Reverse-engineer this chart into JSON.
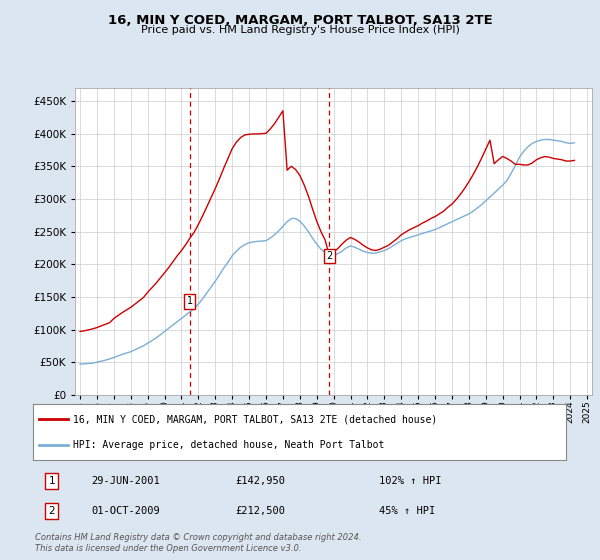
{
  "title": "16, MIN Y COED, MARGAM, PORT TALBOT, SA13 2TE",
  "subtitle": "Price paid vs. HM Land Registry's House Price Index (HPI)",
  "ylabel_ticks": [
    0,
    50000,
    100000,
    150000,
    200000,
    250000,
    300000,
    350000,
    400000,
    450000
  ],
  "ylim": [
    0,
    470000
  ],
  "xlim_start": 1994.7,
  "xlim_end": 2025.3,
  "transaction1": {
    "date_num": 2001.49,
    "price": 142950,
    "label": "1"
  },
  "transaction2": {
    "date_num": 2009.75,
    "price": 212500,
    "label": "2"
  },
  "legend_line1": "16, MIN Y COED, MARGAM, PORT TALBOT, SA13 2TE (detached house)",
  "legend_line2": "HPI: Average price, detached house, Neath Port Talbot",
  "table_row1": [
    "1",
    "29-JUN-2001",
    "£142,950",
    "102% ↑ HPI"
  ],
  "table_row2": [
    "2",
    "01-OCT-2009",
    "£212,500",
    "45% ↑ HPI"
  ],
  "footer": "Contains HM Land Registry data © Crown copyright and database right 2024.\nThis data is licensed under the Open Government Licence v3.0.",
  "red_color": "#cc0000",
  "blue_color": "#7BAFD4",
  "background_color": "#dce6f1",
  "plot_bg_color": "#ffffff",
  "grid_color": "#cccccc",
  "hpi_years": [
    1995.0,
    1995.25,
    1995.5,
    1995.75,
    1996.0,
    1996.25,
    1996.5,
    1996.75,
    1997.0,
    1997.25,
    1997.5,
    1997.75,
    1998.0,
    1998.25,
    1998.5,
    1998.75,
    1999.0,
    1999.25,
    1999.5,
    1999.75,
    2000.0,
    2000.25,
    2000.5,
    2000.75,
    2001.0,
    2001.25,
    2001.5,
    2001.75,
    2002.0,
    2002.25,
    2002.5,
    2002.75,
    2003.0,
    2003.25,
    2003.5,
    2003.75,
    2004.0,
    2004.25,
    2004.5,
    2004.75,
    2005.0,
    2005.25,
    2005.5,
    2005.75,
    2006.0,
    2006.25,
    2006.5,
    2006.75,
    2007.0,
    2007.25,
    2007.5,
    2007.75,
    2008.0,
    2008.25,
    2008.5,
    2008.75,
    2009.0,
    2009.25,
    2009.5,
    2009.75,
    2010.0,
    2010.25,
    2010.5,
    2010.75,
    2011.0,
    2011.25,
    2011.5,
    2011.75,
    2012.0,
    2012.25,
    2012.5,
    2012.75,
    2013.0,
    2013.25,
    2013.5,
    2013.75,
    2014.0,
    2014.25,
    2014.5,
    2014.75,
    2015.0,
    2015.25,
    2015.5,
    2015.75,
    2016.0,
    2016.25,
    2016.5,
    2016.75,
    2017.0,
    2017.25,
    2017.5,
    2017.75,
    2018.0,
    2018.25,
    2018.5,
    2018.75,
    2019.0,
    2019.25,
    2019.5,
    2019.75,
    2020.0,
    2020.25,
    2020.5,
    2020.75,
    2021.0,
    2021.25,
    2021.5,
    2021.75,
    2022.0,
    2022.25,
    2022.5,
    2022.75,
    2023.0,
    2023.25,
    2023.5,
    2023.75,
    2024.0,
    2024.25
  ],
  "hpi_values": [
    47000,
    47500,
    48000,
    48500,
    50000,
    51500,
    53000,
    55000,
    57000,
    59500,
    62000,
    64000,
    66000,
    69000,
    72000,
    75000,
    79000,
    83000,
    87000,
    92000,
    97000,
    102000,
    107000,
    112000,
    117000,
    122000,
    127000,
    132000,
    139000,
    147000,
    156000,
    165000,
    174000,
    184000,
    194000,
    203000,
    213000,
    220000,
    226000,
    230000,
    233000,
    234000,
    235000,
    235500,
    236000,
    240000,
    245000,
    251000,
    258000,
    265000,
    270000,
    270000,
    266000,
    259000,
    250000,
    240000,
    231000,
    223000,
    218000,
    214000,
    213000,
    216000,
    220000,
    225000,
    228000,
    226000,
    223000,
    220000,
    218000,
    217000,
    217000,
    219000,
    221000,
    224000,
    228000,
    232000,
    236000,
    239000,
    241000,
    243000,
    245000,
    247000,
    249000,
    251000,
    253000,
    256000,
    259000,
    262000,
    265000,
    268000,
    271000,
    274000,
    277000,
    281000,
    286000,
    291000,
    297000,
    303000,
    309000,
    315000,
    321000,
    328000,
    339000,
    351000,
    364000,
    373000,
    380000,
    385000,
    388000,
    390000,
    391000,
    391000,
    390000,
    389000,
    388000,
    386000,
    385000,
    386000
  ],
  "price_years": [
    1995.0,
    1995.25,
    1995.5,
    1995.75,
    1996.0,
    1996.25,
    1996.5,
    1996.75,
    1997.0,
    1997.25,
    1997.5,
    1997.75,
    1998.0,
    1998.25,
    1998.5,
    1998.75,
    1999.0,
    1999.25,
    1999.5,
    1999.75,
    2000.0,
    2000.25,
    2000.5,
    2000.75,
    2001.0,
    2001.25,
    2001.5,
    2001.75,
    2002.0,
    2002.25,
    2002.5,
    2002.75,
    2003.0,
    2003.25,
    2003.5,
    2003.75,
    2004.0,
    2004.25,
    2004.5,
    2004.75,
    2005.0,
    2005.25,
    2005.5,
    2005.75,
    2006.0,
    2006.25,
    2006.5,
    2006.75,
    2007.0,
    2007.25,
    2007.5,
    2007.75,
    2008.0,
    2008.25,
    2008.5,
    2008.75,
    2009.0,
    2009.25,
    2009.5,
    2009.75,
    2010.0,
    2010.25,
    2010.5,
    2010.75,
    2011.0,
    2011.25,
    2011.5,
    2011.75,
    2012.0,
    2012.25,
    2012.5,
    2012.75,
    2013.0,
    2013.25,
    2013.5,
    2013.75,
    2014.0,
    2014.25,
    2014.5,
    2014.75,
    2015.0,
    2015.25,
    2015.5,
    2015.75,
    2016.0,
    2016.25,
    2016.5,
    2016.75,
    2017.0,
    2017.25,
    2017.5,
    2017.75,
    2018.0,
    2018.25,
    2018.5,
    2018.75,
    2019.0,
    2019.25,
    2019.5,
    2019.75,
    2020.0,
    2020.25,
    2020.5,
    2020.75,
    2021.0,
    2021.25,
    2021.5,
    2021.75,
    2022.0,
    2022.25,
    2022.5,
    2022.75,
    2023.0,
    2023.25,
    2023.5,
    2023.75,
    2024.0,
    2024.25
  ],
  "price_values": [
    97000,
    98000,
    99500,
    101000,
    103000,
    105500,
    108000,
    110500,
    117000,
    121500,
    126000,
    130000,
    134000,
    139000,
    144000,
    149000,
    157000,
    164000,
    171000,
    179000,
    187000,
    195000,
    204000,
    213000,
    221000,
    230000,
    240000,
    249000,
    261000,
    274000,
    288000,
    302000,
    316000,
    331000,
    347000,
    362000,
    377000,
    387000,
    394000,
    398000,
    399000,
    399500,
    399500,
    400000,
    400500,
    407000,
    415000,
    425000,
    435000,
    344000,
    350000,
    345000,
    336000,
    322000,
    305000,
    285000,
    266000,
    250000,
    237000,
    212500,
    219000,
    224000,
    231000,
    237000,
    241000,
    238000,
    234000,
    229000,
    225000,
    222000,
    221000,
    223000,
    226000,
    229000,
    234000,
    239000,
    245000,
    249000,
    253000,
    256000,
    259000,
    263000,
    266000,
    270000,
    273000,
    277000,
    281000,
    287000,
    292000,
    299000,
    307000,
    316000,
    326000,
    337000,
    349000,
    362000,
    376000,
    390000,
    354000,
    360000,
    365000,
    362000,
    358000,
    353000,
    353000,
    352000,
    352000,
    355000,
    360000,
    363000,
    365000,
    364000,
    362000,
    361000,
    360000,
    358000,
    358000,
    359000
  ]
}
